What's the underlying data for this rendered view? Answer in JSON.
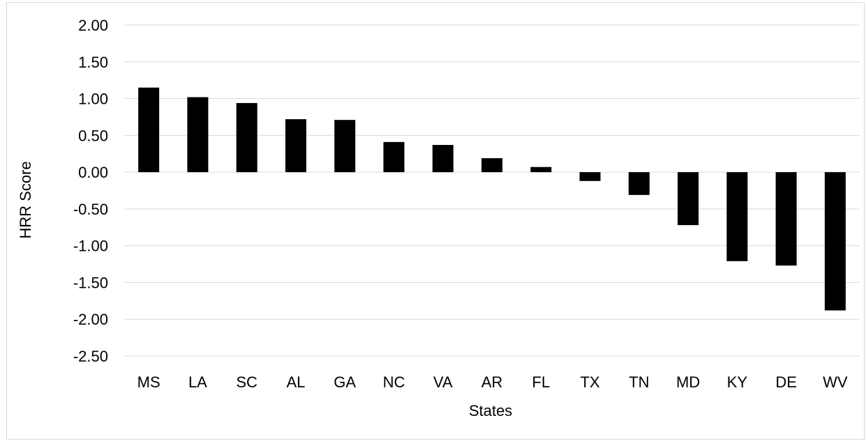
{
  "chart_data": {
    "type": "bar",
    "xlabel": "States",
    "ylabel": "HRR Score",
    "categories": [
      "MS",
      "LA",
      "SC",
      "AL",
      "GA",
      "NC",
      "VA",
      "AR",
      "FL",
      "TX",
      "TN",
      "MD",
      "KY",
      "DE",
      "WV"
    ],
    "values": [
      1.15,
      1.02,
      0.94,
      0.72,
      0.71,
      0.41,
      0.37,
      0.19,
      0.07,
      -0.12,
      -0.31,
      -0.72,
      -1.21,
      -1.27,
      -1.88
    ],
    "ylim": [
      -2.5,
      2.0
    ],
    "yticks": [
      "2.00",
      "1.50",
      "1.00",
      "0.50",
      "0.00",
      "-0.50",
      "-1.00",
      "-1.50",
      "-2.00",
      "-2.50"
    ],
    "grid": true,
    "bar_color": "#000000",
    "grid_color": "#d9d9d9"
  }
}
